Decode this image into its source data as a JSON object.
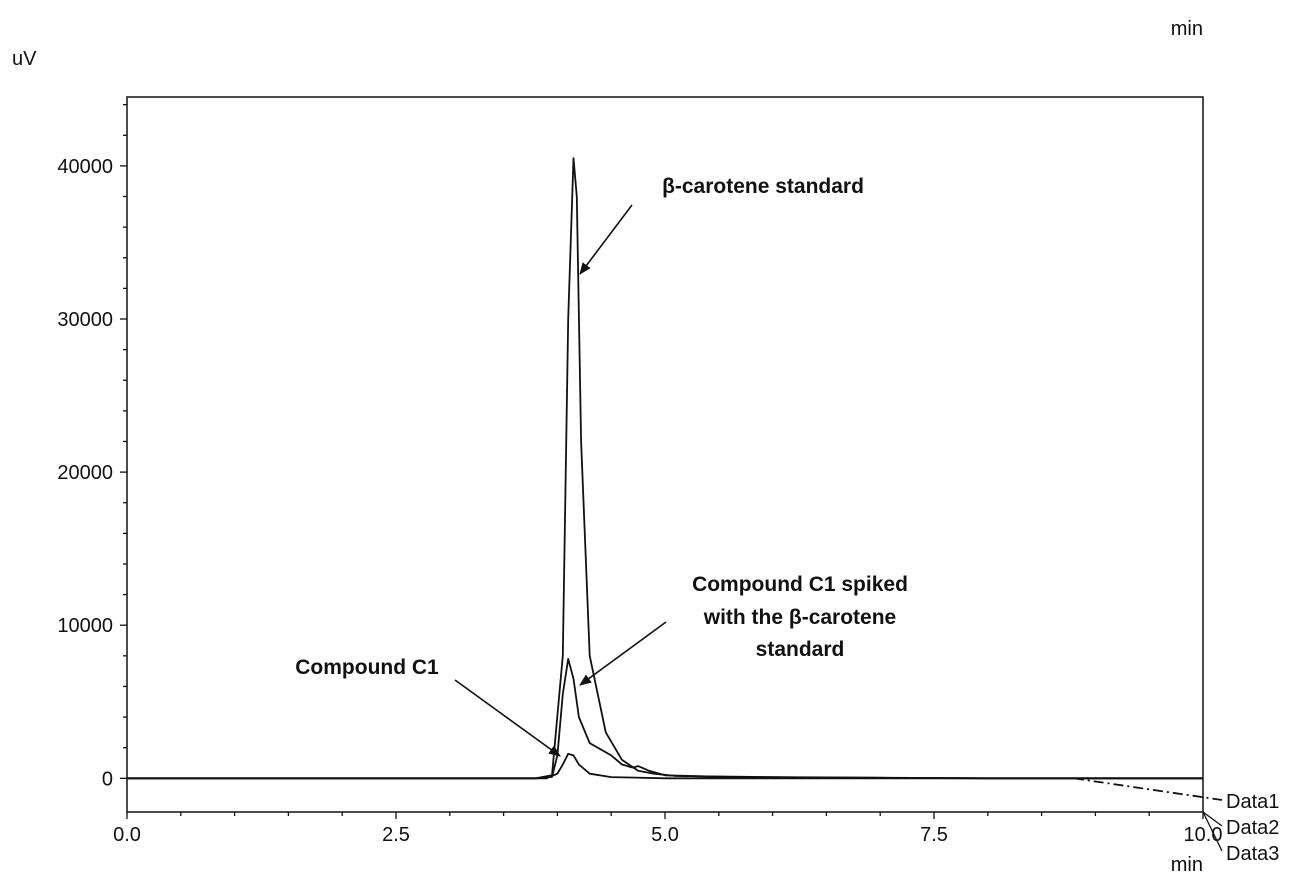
{
  "chart_data": {
    "type": "line",
    "title": "",
    "xlabel": "min",
    "ylabel": "uV",
    "top_unit_label": "min",
    "xlim": [
      0,
      10
    ],
    "ylim": [
      -2200,
      44500
    ],
    "x_ticks": [
      0,
      2.5,
      5,
      7.5,
      10
    ],
    "x_tick_labels": [
      "0.0",
      "2.5",
      "5.0",
      "7.5",
      "10.0"
    ],
    "y_ticks": [
      0,
      10000,
      20000,
      30000,
      40000
    ],
    "y_tick_labels": [
      "0",
      "10000",
      "20000",
      "30000",
      "40000"
    ],
    "grid": false,
    "series": [
      {
        "name": "Data1",
        "x": [
          0,
          3.8,
          3.95,
          4.05,
          4.1,
          4.15,
          4.18,
          4.22,
          4.3,
          4.45,
          4.6,
          4.75,
          4.9,
          5.1,
          6.0,
          7.0,
          8.0,
          8.8,
          10.0
        ],
        "y": [
          0,
          0,
          200,
          8000,
          30000,
          40500,
          38000,
          22000,
          8000,
          3000,
          1200,
          500,
          300,
          150,
          80,
          40,
          0,
          0,
          0
        ]
      },
      {
        "name": "Data2",
        "x": [
          0,
          3.8,
          3.95,
          4.0,
          4.05,
          4.1,
          4.15,
          4.2,
          4.3,
          4.4,
          4.5,
          4.6,
          4.7,
          4.75,
          4.85,
          5.0,
          5.5,
          6.5,
          8.0,
          10.0
        ],
        "y": [
          0,
          0,
          100,
          1500,
          5500,
          7800,
          6500,
          4000,
          2300,
          1900,
          1500,
          900,
          700,
          800,
          500,
          200,
          100,
          50,
          0,
          0
        ]
      },
      {
        "name": "Data3",
        "x": [
          0,
          3.9,
          4.0,
          4.05,
          4.1,
          4.15,
          4.2,
          4.3,
          4.5,
          5.0,
          10.0
        ],
        "y": [
          0,
          0,
          300,
          900,
          1600,
          1500,
          900,
          300,
          80,
          0,
          0
        ]
      }
    ],
    "legend": [
      "Data1",
      "Data2",
      "Data3"
    ],
    "annotations": [
      {
        "text": "β-carotene standard"
      },
      {
        "text": "Compound C1 spiked\nwith the β-carotene\nstandard"
      },
      {
        "text": "Compound C1"
      }
    ]
  }
}
